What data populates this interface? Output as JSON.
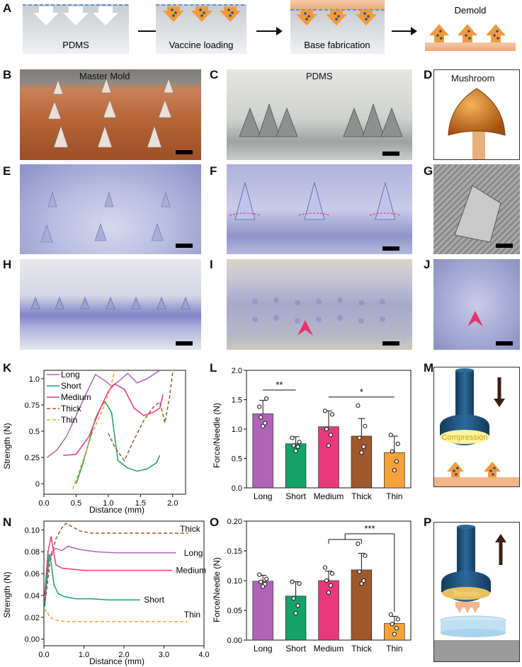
{
  "panel_letters": {
    "A": "A",
    "B": "B",
    "C": "C",
    "D": "D",
    "E": "E",
    "F": "F",
    "G": "G",
    "H": "H",
    "I": "I",
    "J": "J",
    "K": "K",
    "L": "L",
    "M": "M",
    "N": "N",
    "O": "O",
    "P": "P"
  },
  "schematic": {
    "step1": "PDMS",
    "step2": "Vaccine loading",
    "step3": "Base fabrication",
    "step4": "Demold"
  },
  "photos": {
    "B": "Master Mold",
    "C": "PDMS",
    "D": "Mushroom"
  },
  "illustrations": {
    "M": "Compression",
    "P": "Tension"
  },
  "colors": {
    "long": "#b064b8",
    "short": "#16a36a",
    "medium": "#e83a7a",
    "thick": "#a0572c",
    "thin": "#f5a23a",
    "cap_navy": "#1e4f77",
    "arrow_dark": "#3b1f12"
  },
  "chart_data": [
    {
      "id": "K",
      "type": "line",
      "xlabel": "Distance (mm)",
      "ylabel": "Strength (N)",
      "xlim": [
        0,
        2.2
      ],
      "ylim": [
        -0.1,
        1.08
      ],
      "xticks": [
        "0.0",
        "0.5",
        "1.0",
        "1.5",
        "2.0"
      ],
      "yticks": [
        "0",
        "0.25",
        "0.5",
        "0.75",
        "1.0"
      ],
      "legend": [
        "Long",
        "Short",
        "Medium",
        "Thick",
        "Thin"
      ],
      "series": [
        {
          "name": "Long",
          "x": [
            0.05,
            0.2,
            0.35,
            0.5,
            0.65,
            0.8,
            0.95,
            1.05,
            1.15,
            1.3,
            1.45,
            1.6,
            1.8
          ],
          "y": [
            0.25,
            0.32,
            0.45,
            0.65,
            0.85,
            1.04,
            0.98,
            0.93,
            0.97,
            1.05,
            0.96,
            1.0,
            1.08
          ]
        },
        {
          "name": "Short",
          "x": [
            0.5,
            0.6,
            0.7,
            0.8,
            0.9,
            0.95,
            1.05,
            1.15,
            1.3,
            1.45,
            1.6,
            1.75,
            1.8
          ],
          "y": [
            0.0,
            0.18,
            0.4,
            0.62,
            0.75,
            0.78,
            0.68,
            0.22,
            0.15,
            0.12,
            0.14,
            0.2,
            0.27
          ]
        },
        {
          "name": "Medium",
          "x": [
            0.3,
            0.5,
            0.7,
            0.85,
            1.0,
            1.1,
            1.25,
            1.4,
            1.55,
            1.7,
            1.8,
            1.85
          ],
          "y": [
            0.27,
            0.28,
            0.45,
            0.68,
            0.88,
            0.95,
            0.9,
            0.72,
            0.65,
            0.68,
            0.72,
            0.85
          ]
        },
        {
          "name": "Thick",
          "x": [
            1.0,
            1.1,
            1.25,
            1.4,
            1.55,
            1.7,
            1.8,
            1.88,
            1.95,
            2.0
          ],
          "y": [
            0.48,
            0.35,
            0.22,
            0.42,
            0.6,
            0.73,
            0.78,
            0.58,
            0.82,
            1.06
          ]
        },
        {
          "name": "Thin",
          "x": [
            0.45,
            0.55,
            0.65,
            0.75,
            0.85,
            0.95,
            1.05,
            1.1
          ],
          "y": [
            -0.05,
            0.12,
            0.3,
            0.48,
            0.62,
            0.76,
            0.95,
            1.08
          ]
        }
      ]
    },
    {
      "id": "L",
      "type": "bar",
      "xlabel": "",
      "ylabel": "Force/Needle (N)",
      "ylim": [
        0,
        2.0
      ],
      "yticks": [
        "0.0",
        "0.5",
        "1.0",
        "1.5",
        "2.0"
      ],
      "categories": [
        "Long",
        "Short",
        "Medium",
        "Thick",
        "Thin"
      ],
      "values": [
        1.26,
        0.75,
        1.04,
        0.88,
        0.6
      ],
      "errors": [
        0.23,
        0.12,
        0.27,
        0.3,
        0.28
      ],
      "points": [
        [
          1.38,
          1.52,
          1.2,
          1.1,
          1.05
        ],
        [
          0.85,
          0.78,
          0.72,
          0.7,
          0.63
        ],
        [
          1.31,
          1.25,
          1.0,
          0.9,
          0.72
        ],
        [
          1.4,
          1.05,
          0.85,
          0.7,
          0.6
        ],
        [
          0.9,
          0.75,
          0.62,
          0.45,
          0.3
        ]
      ],
      "significance": [
        {
          "label": "**",
          "from": 0,
          "to": 1
        },
        {
          "label": "*",
          "from": 2,
          "to": 4
        }
      ]
    },
    {
      "id": "N",
      "type": "line",
      "xlabel": "Distance (mm)",
      "ylabel": "Strength (N)",
      "xlim": [
        0,
        4.0
      ],
      "ylim": [
        -0.006,
        0.108
      ],
      "xticks": [
        "0.0",
        "1.0",
        "2.0",
        "3.0",
        "4.0"
      ],
      "yticks": [
        "0.00",
        "0.02",
        "0.04",
        "0.06",
        "0.08",
        "0.10"
      ],
      "series": [
        {
          "name": "Thick",
          "x": [
            0.02,
            0.15,
            0.3,
            0.45,
            0.55,
            0.7,
            0.9,
            1.2,
            1.6,
            2.0,
            2.6,
            3.2,
            3.6
          ],
          "y": [
            0.03,
            0.07,
            0.092,
            0.102,
            0.106,
            0.103,
            0.099,
            0.097,
            0.097,
            0.097,
            0.097,
            0.097,
            0.097
          ]
        },
        {
          "name": "Long",
          "x": [
            0.02,
            0.12,
            0.2,
            0.3,
            0.45,
            0.6,
            0.9,
            1.3,
            1.8,
            2.4,
            3.0,
            3.3
          ],
          "y": [
            0.035,
            0.07,
            0.08,
            0.083,
            0.081,
            0.085,
            0.082,
            0.08,
            0.079,
            0.079,
            0.079,
            0.079
          ]
        },
        {
          "name": "Medium",
          "x": [
            0.02,
            0.1,
            0.18,
            0.22,
            0.3,
            0.45,
            0.7,
            1.0,
            1.5,
            2.0,
            2.6,
            3.2
          ],
          "y": [
            0.04,
            0.08,
            0.094,
            0.085,
            0.068,
            0.065,
            0.064,
            0.063,
            0.063,
            0.063,
            0.063,
            0.063
          ]
        },
        {
          "name": "Short",
          "x": [
            0.02,
            0.08,
            0.13,
            0.18,
            0.25,
            0.35,
            0.5,
            0.8,
            1.2,
            1.6,
            2.0,
            2.4
          ],
          "y": [
            0.03,
            0.06,
            0.078,
            0.07,
            0.05,
            0.042,
            0.039,
            0.037,
            0.037,
            0.036,
            0.036,
            0.036
          ]
        },
        {
          "name": "Thin",
          "x": [
            0.02,
            0.06,
            0.12,
            0.2,
            0.35,
            0.6,
            1.0,
            1.5,
            2.0,
            2.6,
            3.2,
            3.6
          ],
          "y": [
            0.025,
            0.027,
            0.022,
            0.019,
            0.017,
            0.016,
            0.016,
            0.016,
            0.016,
            0.016,
            0.016,
            0.016
          ]
        }
      ],
      "labels": [
        "Thick",
        "Long",
        "Medium",
        "Short",
        "Thin"
      ]
    },
    {
      "id": "O",
      "type": "bar",
      "xlabel": "",
      "ylabel": "Force/Needle (N)",
      "ylim": [
        0,
        0.2
      ],
      "yticks": [
        "0.00",
        "0.05",
        "0.10",
        "0.15",
        "0.20"
      ],
      "categories": [
        "Long",
        "Short",
        "Medium",
        "Thick",
        "Thin"
      ],
      "values": [
        0.099,
        0.074,
        0.1,
        0.118,
        0.028
      ],
      "errors": [
        0.01,
        0.024,
        0.016,
        0.028,
        0.012
      ],
      "points": [
        [
          0.11,
          0.103,
          0.098,
          0.094,
          0.09
        ],
        [
          0.098,
          0.095,
          0.07,
          0.058,
          0.045
        ],
        [
          0.122,
          0.112,
          0.1,
          0.092,
          0.08
        ],
        [
          0.162,
          0.142,
          0.115,
          0.1,
          0.095
        ],
        [
          0.043,
          0.035,
          0.027,
          0.02,
          0.01
        ]
      ],
      "significance": [
        {
          "label": "***",
          "from": 2,
          "to": 4,
          "group_from": 2,
          "group_to": 3
        }
      ]
    }
  ]
}
